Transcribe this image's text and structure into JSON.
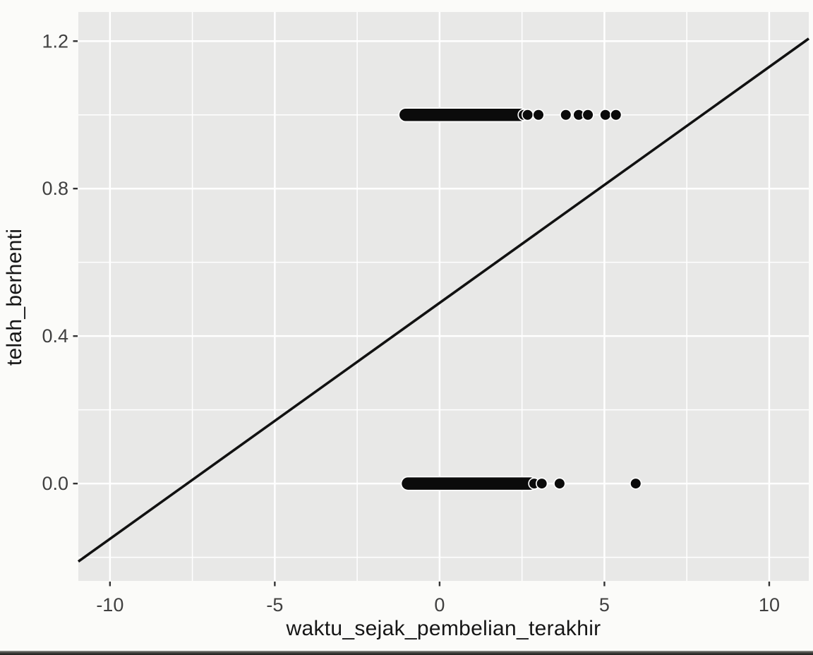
{
  "page": {
    "background": "#fbfbf9"
  },
  "chart_data": {
    "type": "scatter",
    "title": "",
    "xlabel": "waktu_sejak_pembelian_terakhir",
    "ylabel": "telah_berhenti",
    "xlim": [
      -10.96,
      11.2
    ],
    "ylim": [
      -0.264,
      1.279
    ],
    "x_ticks": [
      -10,
      -5,
      0,
      5,
      10
    ],
    "x_tick_labels": [
      "-10",
      "-5",
      "0",
      "5",
      "10"
    ],
    "y_ticks": [
      0.0,
      0.4,
      0.8,
      1.2
    ],
    "y_tick_labels": [
      "0.0",
      "0.4",
      "0.8",
      "1.2"
    ],
    "x_minor_gridlines": [
      -7.5,
      -2.5,
      2.5,
      7.5
    ],
    "y_minor_gridlines": [
      -0.2,
      0.2,
      0.6,
      1.0
    ],
    "grid": "on",
    "legend_position": "none",
    "panel_background_color": "#e8e8e7",
    "gridline_color": "#ffffff",
    "point_color": "#0b0b0b",
    "regression_line_color": "#111111",
    "tick_label_color": "#404040",
    "axis_title_color": "#161616",
    "tick_mark_color": "#333333",
    "regression_line": {
      "slope": 0.064,
      "intercept": 0.49
    },
    "series": [
      {
        "name": "telah_berhenti = 1",
        "y": 1.0,
        "cluster_x_range": [
          -1.03,
          2.45
        ],
        "outlier_x": [
          2.55,
          2.67,
          3.0,
          3.83,
          4.22,
          4.5,
          5.03,
          5.35
        ]
      },
      {
        "name": "telah_berhenti = 0",
        "y": 0.0,
        "cluster_x_range": [
          -0.96,
          2.75
        ],
        "outlier_x": [
          2.87,
          3.1,
          3.64,
          5.95
        ]
      }
    ]
  }
}
